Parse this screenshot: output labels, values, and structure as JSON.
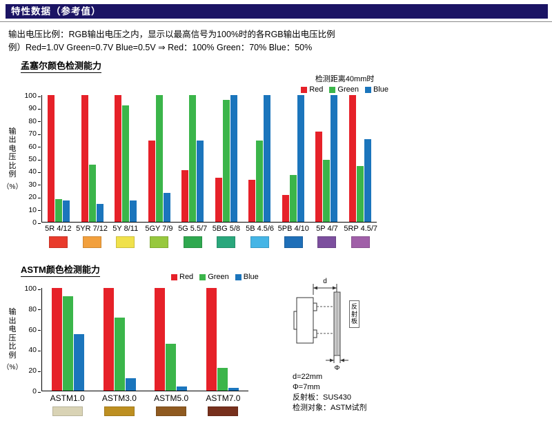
{
  "page": {
    "header_title": "特性数据（参考值）",
    "intro_line1": "输出电压比例：RGB输出电压之内，显示以最高信号为100%时的各RGB输出电压比例",
    "intro_line2": "例）Red=1.0V Green=0.7V Blue=0.5V ⇒ Red：100% Green：70% Blue：50%"
  },
  "chart_data": [
    {
      "type": "bar",
      "title": "孟塞尔颜色检测能力",
      "legend_note": "检测距离40mm时",
      "ylabel": "输出电压比例",
      "ylabel_unit": "（%）",
      "ylim": [
        0,
        100
      ],
      "ytick": 10,
      "grid": false,
      "legend_position": "top-right",
      "categories": [
        "5R 4/12",
        "5YR 7/12",
        "5Y 8/11",
        "5GY 7/9",
        "5G 5.5/7",
        "5BG 5/8",
        "5B 4.5/6",
        "5PB 4/10",
        "5P 4/7",
        "5RP 4.5/7"
      ],
      "series": [
        {
          "name": "Red",
          "color": "#e62129",
          "values": [
            100,
            100,
            100,
            64,
            41,
            35,
            33,
            21,
            71,
            100
          ]
        },
        {
          "name": "Green",
          "color": "#3bb54a",
          "values": [
            18,
            45,
            92,
            100,
            100,
            96,
            64,
            37,
            49,
            44
          ]
        },
        {
          "name": "Blue",
          "color": "#1b75bc",
          "values": [
            17,
            14,
            17,
            23,
            64,
            100,
            100,
            100,
            100,
            65
          ]
        }
      ],
      "swatch_colors": [
        "#e93b2c",
        "#f2a03d",
        "#f0e14b",
        "#97c83e",
        "#2fa84f",
        "#2aa77c",
        "#45b5e6",
        "#1f6fb8",
        "#7c4f9e",
        "#a05fa8"
      ]
    },
    {
      "type": "bar",
      "title": "ASTM颜色检测能力",
      "ylabel": "输出电压比例",
      "ylabel_unit": "（%）",
      "ylim": [
        0,
        100
      ],
      "ytick": 20,
      "grid": false,
      "legend_position": "top-center",
      "categories": [
        "ASTM1.0",
        "ASTM3.0",
        "ASTM5.0",
        "ASTM7.0"
      ],
      "series": [
        {
          "name": "Red",
          "color": "#e62129",
          "values": [
            100,
            100,
            100,
            100
          ]
        },
        {
          "name": "Green",
          "color": "#3bb54a",
          "values": [
            92,
            71,
            46,
            22
          ]
        },
        {
          "name": "Blue",
          "color": "#1b75bc",
          "values": [
            55,
            12,
            4,
            3
          ]
        }
      ],
      "swatch_colors": [
        "#d9d3b5",
        "#bd8f21",
        "#8f5a20",
        "#77301c"
      ]
    }
  ],
  "diagram": {
    "dim_d": "d",
    "dim_phi": "Φ",
    "reflector_label": "反射板",
    "notes": [
      "d=22mm",
      "Φ=7mm",
      "反射板：SUS430",
      "检测对象：ASTM试剂"
    ]
  }
}
